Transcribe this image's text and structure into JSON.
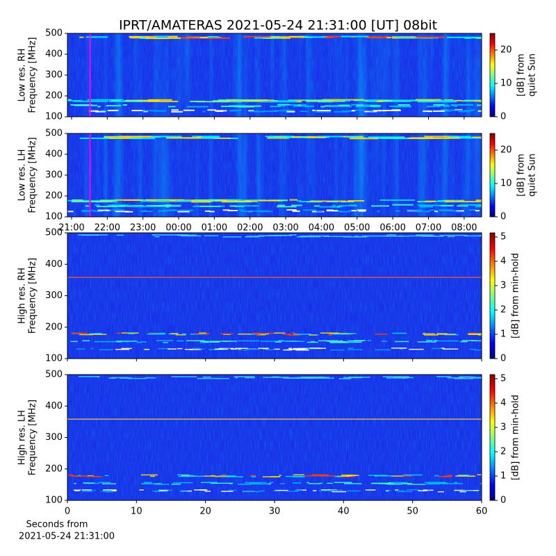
{
  "chart_data": [
    {
      "type": "heatmap",
      "title": "IPRT/AMATERAS 2021-05-24 21:31:00 [UT]   08bit",
      "ylabel": [
        "Low res. RH",
        "Frequency [MHz]"
      ],
      "ylim": [
        100,
        500
      ],
      "yticks": [
        100,
        200,
        300,
        400,
        500
      ],
      "xlim": [
        -0.117,
        11.49
      ],
      "xticks": [
        0,
        1,
        2,
        3,
        4,
        5,
        6,
        7,
        8,
        9,
        10,
        11
      ],
      "xtick_labels": false,
      "cursor_x": 0.517,
      "cursor_color": "#ff00ff",
      "colormap": "jet",
      "clim": [
        0,
        25
      ],
      "cticks": [
        0,
        10,
        20
      ],
      "clabel": [
        "[dB] from",
        "quiet Sun"
      ]
    },
    {
      "type": "heatmap",
      "ylabel": [
        "Low res. LH",
        "Frequency [MHz]"
      ],
      "ylim": [
        100,
        500
      ],
      "yticks": [
        100,
        200,
        300,
        400,
        500
      ],
      "xlim": [
        -0.117,
        11.49
      ],
      "xticks": [
        {
          "value": 0,
          "label": "21:00"
        },
        {
          "value": 1,
          "label": "22:00"
        },
        {
          "value": 2,
          "label": "23:00"
        },
        {
          "value": 3,
          "label": "00:00"
        },
        {
          "value": 4,
          "label": "01:00"
        },
        {
          "value": 5,
          "label": "02:00"
        },
        {
          "value": 6,
          "label": "03:00"
        },
        {
          "value": 7,
          "label": "04:00"
        },
        {
          "value": 8,
          "label": "05:00"
        },
        {
          "value": 9,
          "label": "06:00"
        },
        {
          "value": 10,
          "label": "07:00"
        },
        {
          "value": 11,
          "label": "08:00"
        }
      ],
      "cursor_x": 0.517,
      "cursor_color": "#ff00ff",
      "colormap": "jet",
      "clim": [
        0,
        25
      ],
      "cticks": [
        0,
        10,
        20
      ],
      "clabel": [
        "[dB] from",
        "quiet Sun"
      ]
    },
    {
      "type": "heatmap",
      "ylabel": [
        "High res. RH",
        "Frequency [MHz]"
      ],
      "ylim": [
        100,
        500
      ],
      "yticks": [
        100,
        200,
        300,
        400,
        500
      ],
      "xlim": [
        0,
        60
      ],
      "xticks": [
        0,
        10,
        20,
        30,
        40,
        50,
        60
      ],
      "xtick_labels": false,
      "colormap": "jet",
      "clim": [
        0,
        5.17
      ],
      "cticks": [
        0,
        1,
        2,
        3,
        4,
        5
      ],
      "clabel": [
        "[dB] from min-hold"
      ]
    },
    {
      "type": "heatmap",
      "ylabel": [
        "High res. LH",
        "Frequency [MHz]"
      ],
      "ylim": [
        100,
        500
      ],
      "yticks": [
        100,
        200,
        300,
        400,
        500
      ],
      "xlim": [
        0,
        60
      ],
      "xticks": [
        0,
        10,
        20,
        30,
        40,
        50,
        60
      ],
      "colormap": "jet",
      "clim": [
        0,
        5.17
      ],
      "cticks": [
        0,
        1,
        2,
        3,
        4,
        5
      ],
      "clabel": [
        "[dB] from min-hold"
      ],
      "xlabel": [
        "Seconds from",
        "2021-05-24 21:31:00"
      ]
    }
  ]
}
